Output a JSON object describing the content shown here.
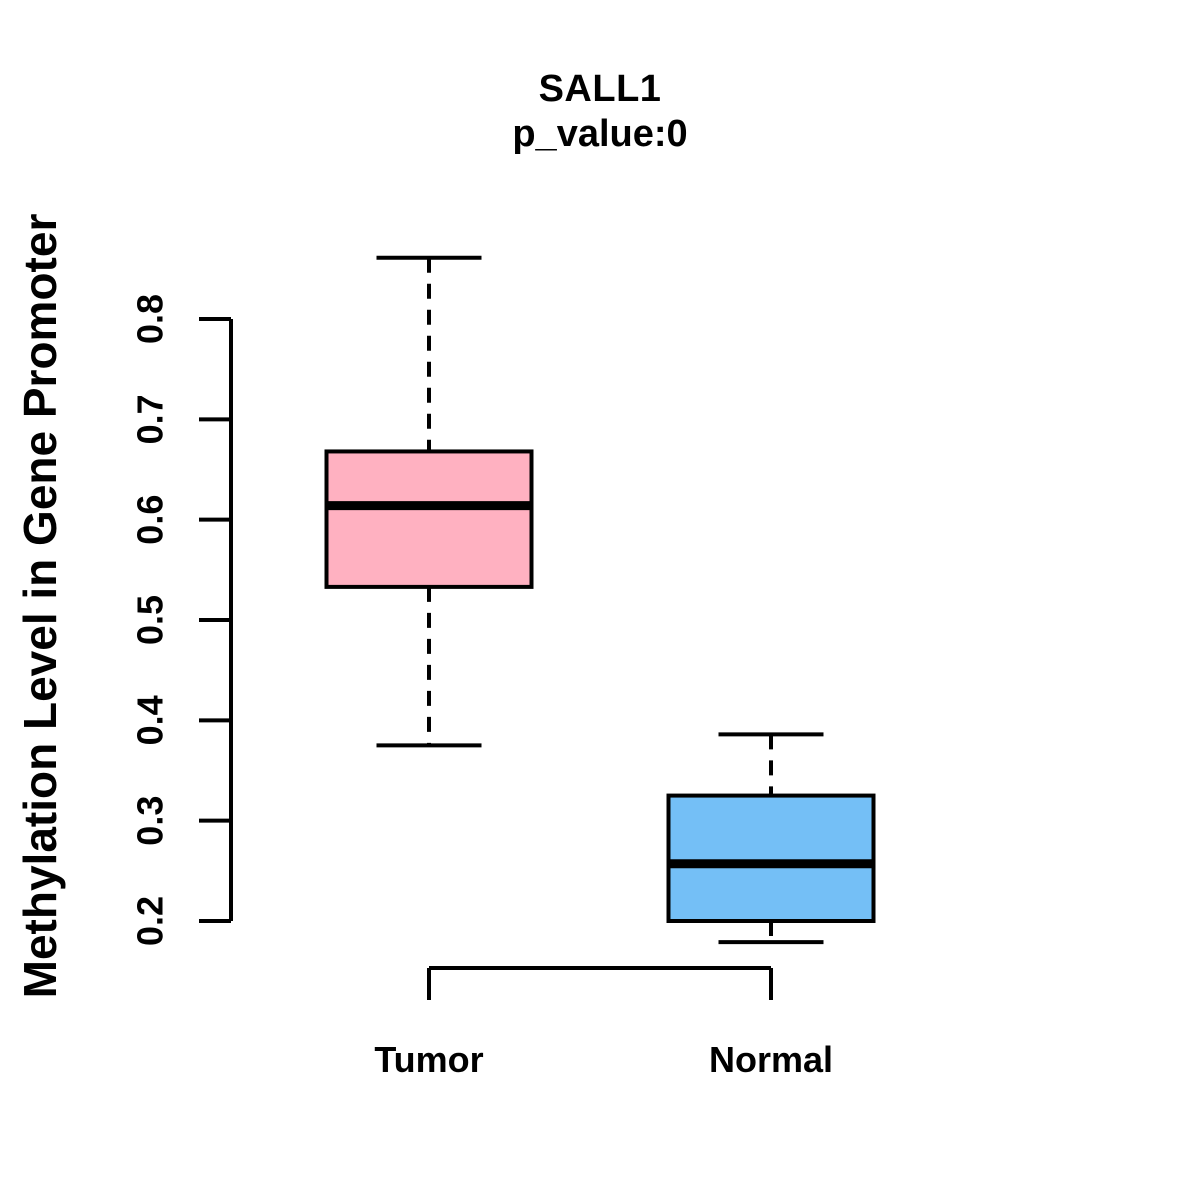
{
  "chart_data": {
    "type": "boxplot",
    "title": "SALL1",
    "subtitle": "p_value:0",
    "ylabel": "Methylation Level in Gene Promoter",
    "ylim": [
      0.2,
      0.8
    ],
    "ytick_labels": [
      "0.2",
      "0.3",
      "0.4",
      "0.5",
      "0.6",
      "0.7",
      "0.8"
    ],
    "categories": [
      "Tumor",
      "Normal"
    ],
    "series": [
      {
        "name": "Tumor",
        "box_color": "#FFB1C1",
        "whisker_low": 0.375,
        "q1": 0.533,
        "median": 0.614,
        "q3": 0.668,
        "whisker_high": 0.861
      },
      {
        "name": "Normal",
        "box_color": "#74BFF6",
        "whisker_low": 0.179,
        "q1": 0.2,
        "median": 0.257,
        "q3": 0.325,
        "whisker_high": 0.386
      }
    ],
    "stroke_color": "#000000",
    "background": "#FFFFFF",
    "grid": false,
    "legend": "none",
    "whisker_style": "dashed"
  }
}
